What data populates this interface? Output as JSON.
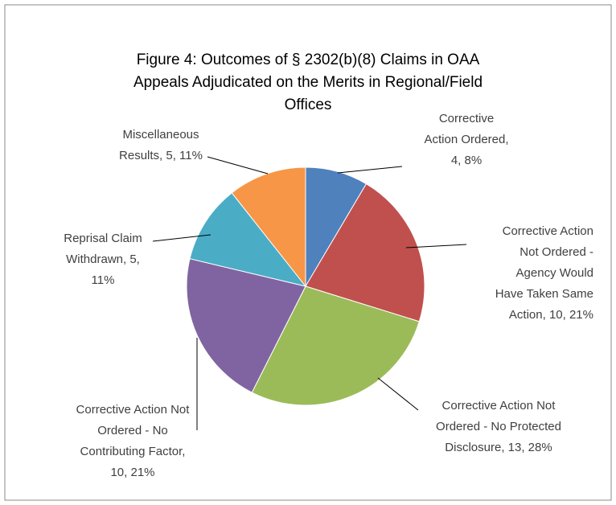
{
  "chart_data": {
    "type": "pie",
    "title": [
      "Figure 4: Outcomes of § 2302(b)(8) Claims in OAA",
      "Appeals Adjudicated on the Merits in Regional/Field",
      "Offices"
    ],
    "categories": [
      "Corrective Action Ordered",
      "Corrective Action Not Ordered - Agency Would Have Taken Same Action",
      "Corrective Action Not Ordered - No Protected Disclosure",
      "Corrective Action Not Ordered - No Contributing Factor",
      "Reprisal Claim Withdrawn",
      "Miscellaneous Results"
    ],
    "values": [
      4,
      10,
      13,
      10,
      5,
      5
    ],
    "value_labels": [
      [
        "Corrective",
        "Action Ordered,",
        "4, 8%"
      ],
      [
        "Corrective Action",
        "Not Ordered -",
        "Agency Would",
        "Have Taken Same",
        "Action, 10, 21%"
      ],
      [
        "Corrective Action Not",
        "Ordered - No Protected",
        "Disclosure, 13, 28%"
      ],
      [
        "Corrective Action Not",
        "Ordered - No",
        "Contributing Factor,",
        "10, 21%"
      ],
      [
        "Reprisal Claim",
        "Withdrawn, 5,",
        "11%"
      ],
      [
        "Miscellaneous",
        "Results, 5, 11%"
      ]
    ],
    "colors": [
      "#4f81bd",
      "#c0504d",
      "#9bbb59",
      "#8064a2",
      "#4bacc6",
      "#f79646"
    ]
  }
}
